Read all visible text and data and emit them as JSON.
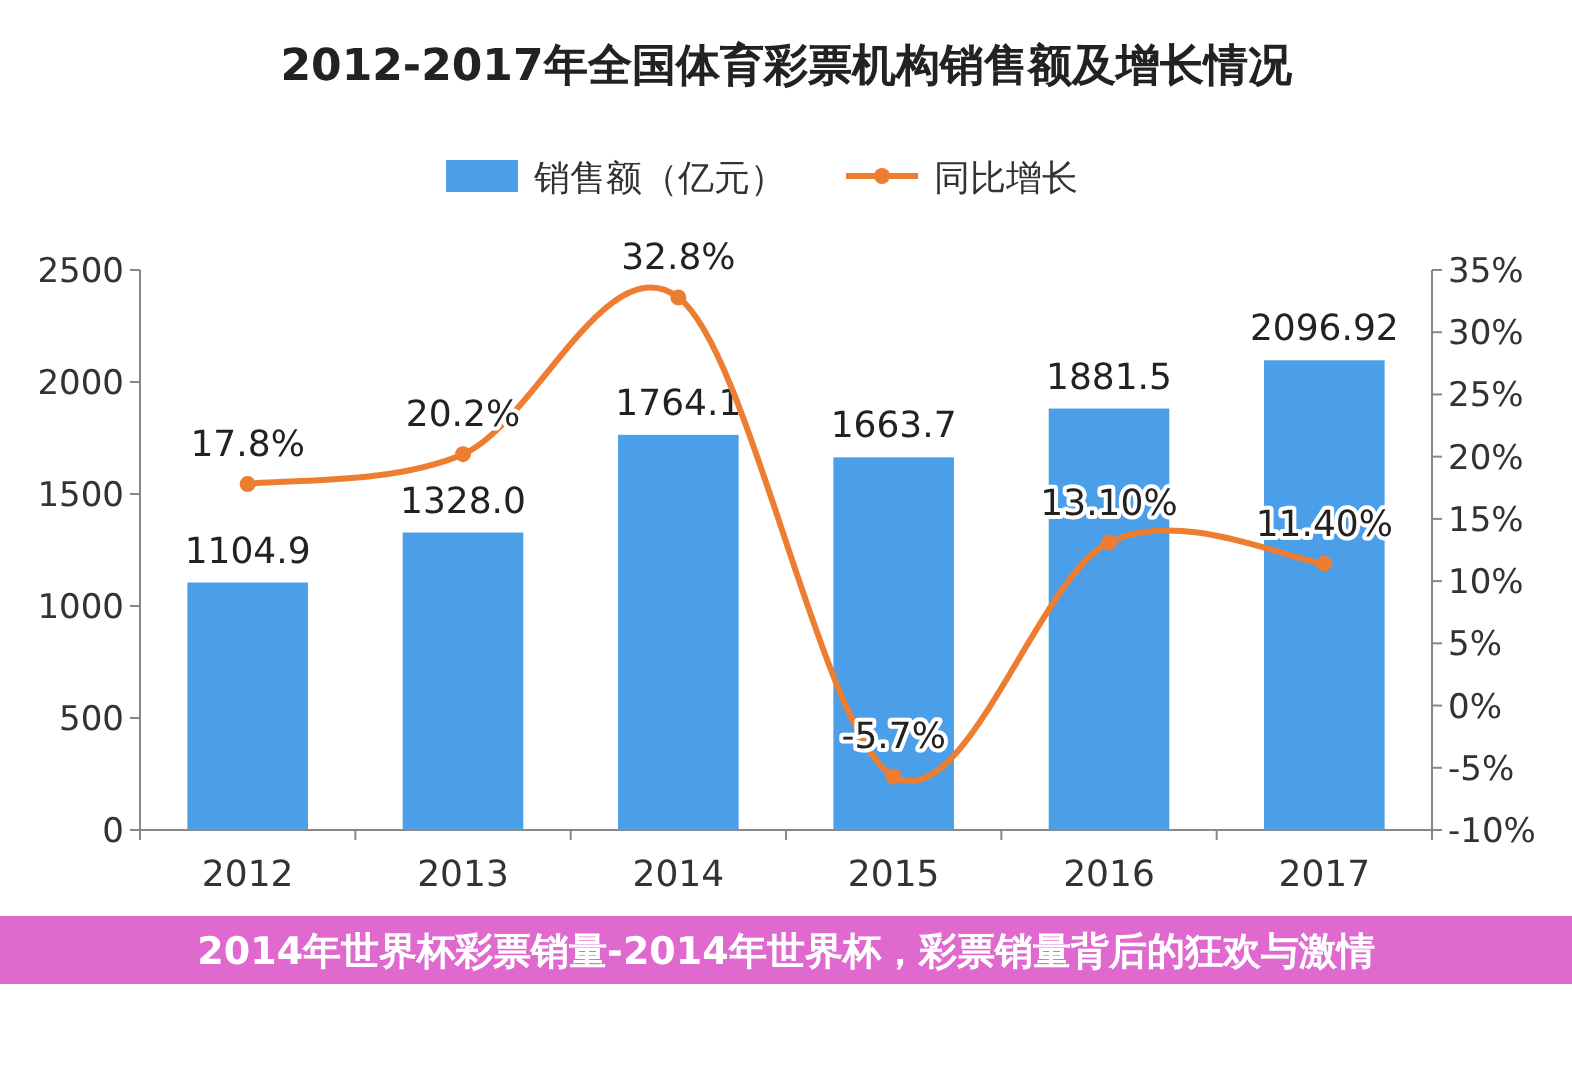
{
  "chart_data": {
    "type": "bar",
    "title": "2012-2017年全国体育彩票机构销售额及增长情况",
    "categories": [
      "2012",
      "2013",
      "2014",
      "2015",
      "2016",
      "2017"
    ],
    "series": [
      {
        "name": "销售额（亿元）",
        "color": "#4a9fe8",
        "values": [
          1104.9,
          1328.0,
          1764.1,
          1663.7,
          1881.5,
          2096.92
        ],
        "value_labels": [
          "1104.9",
          "1328.0",
          "1764.1",
          "1663.7",
          "1881.5",
          "2096.92"
        ]
      },
      {
        "name": "同比增长",
        "type": "line",
        "axis": "y2",
        "color": "#ed7d31",
        "values": [
          17.8,
          20.2,
          32.8,
          -5.7,
          13.1,
          11.4
        ],
        "value_labels": [
          "17.8%",
          "20.2%",
          "32.8%",
          "-5.7%",
          "13.10%",
          "11.40%"
        ]
      }
    ],
    "ylim": [
      0,
      2500
    ],
    "yticks": [
      0,
      500,
      1000,
      1500,
      2000,
      2500
    ],
    "y2lim": [
      -10,
      35
    ],
    "y2ticks": [
      {
        "value": -10,
        "label": "-10%"
      },
      {
        "value": -5,
        "label": "-5%"
      },
      {
        "value": 0,
        "label": "0%"
      },
      {
        "value": 5,
        "label": "5%"
      },
      {
        "value": 10,
        "label": "10%"
      },
      {
        "value": 15,
        "label": "15%"
      },
      {
        "value": 20,
        "label": "20%"
      },
      {
        "value": 25,
        "label": "25%"
      },
      {
        "value": 30,
        "label": "30%"
      },
      {
        "value": 35,
        "label": "35%"
      }
    ],
    "legend": "top",
    "marker": "circle",
    "annotations": [
      "2014年世界杯彩票销量-2014年世界杯，彩票销量背后的狂欢与激情"
    ]
  }
}
